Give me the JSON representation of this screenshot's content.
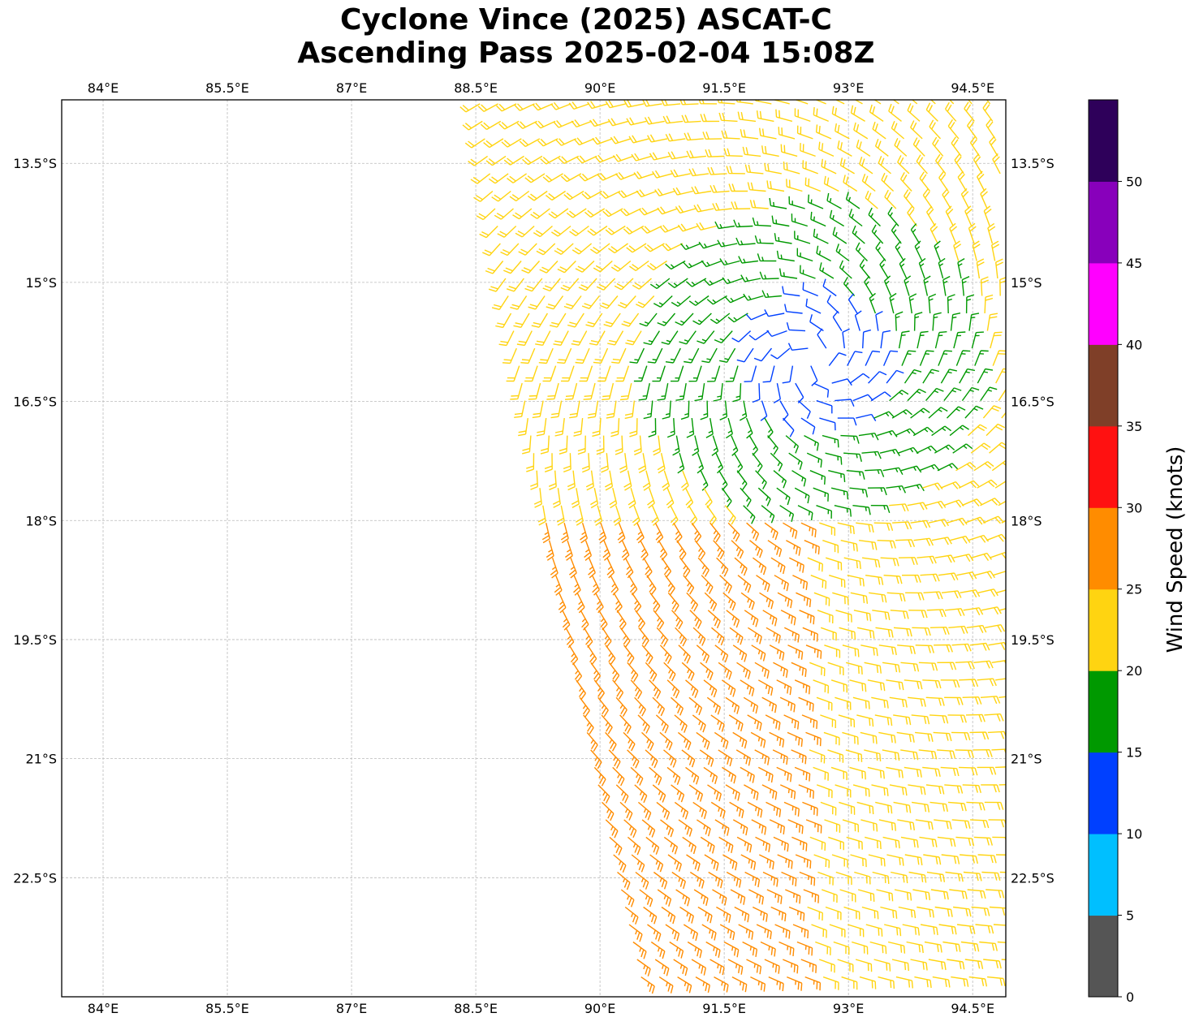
{
  "figure": {
    "title_line1": "Cyclone Vince (2025) ASCAT-C",
    "title_line2": "Ascending Pass 2025-02-04 15:08Z"
  },
  "map": {
    "lon_range": [
      83.5,
      94.9
    ],
    "lat_range": [
      -24.0,
      -12.7
    ],
    "lon_ticks": [
      {
        "value": 84.0,
        "label": "84°E"
      },
      {
        "value": 85.5,
        "label": "85.5°E"
      },
      {
        "value": 87.0,
        "label": "87°E"
      },
      {
        "value": 88.5,
        "label": "88.5°E"
      },
      {
        "value": 90.0,
        "label": "90°E"
      },
      {
        "value": 91.5,
        "label": "91.5°E"
      },
      {
        "value": 93.0,
        "label": "93°E"
      },
      {
        "value": 94.5,
        "label": "94.5°E"
      }
    ],
    "lat_ticks": [
      {
        "value": -13.5,
        "label": "13.5°S"
      },
      {
        "value": -15.0,
        "label": "15°S"
      },
      {
        "value": -16.5,
        "label": "16.5°S"
      },
      {
        "value": -18.0,
        "label": "18°S"
      },
      {
        "value": -19.5,
        "label": "19.5°S"
      },
      {
        "value": -21.0,
        "label": "21°S"
      },
      {
        "value": -22.5,
        "label": "22.5°S"
      }
    ],
    "gridlines": true,
    "storm_center_approx": {
      "lon": 92.6,
      "lat": -16.0
    }
  },
  "colorbar": {
    "label": "Wind Speed (knots)",
    "bins": [
      {
        "from": 0,
        "to": 5,
        "color": "#555555"
      },
      {
        "from": 5,
        "to": 10,
        "color": "#00bfff"
      },
      {
        "from": 10,
        "to": 15,
        "color": "#0040ff"
      },
      {
        "from": 15,
        "to": 20,
        "color": "#009900"
      },
      {
        "from": 20,
        "to": 25,
        "color": "#ffd411"
      },
      {
        "from": 25,
        "to": 30,
        "color": "#ff8c00"
      },
      {
        "from": 30,
        "to": 35,
        "color": "#ff1111"
      },
      {
        "from": 35,
        "to": 40,
        "color": "#7f3f28"
      },
      {
        "from": 40,
        "to": 45,
        "color": "#ff00ff"
      },
      {
        "from": 45,
        "to": 50,
        "color": "#8800bb"
      },
      {
        "from": 50,
        "to": 55,
        "color": "#2e005a"
      }
    ],
    "tick_labels": [
      "0",
      "5",
      "10",
      "15",
      "20",
      "25",
      "30",
      "35",
      "40",
      "45",
      "50"
    ]
  }
}
